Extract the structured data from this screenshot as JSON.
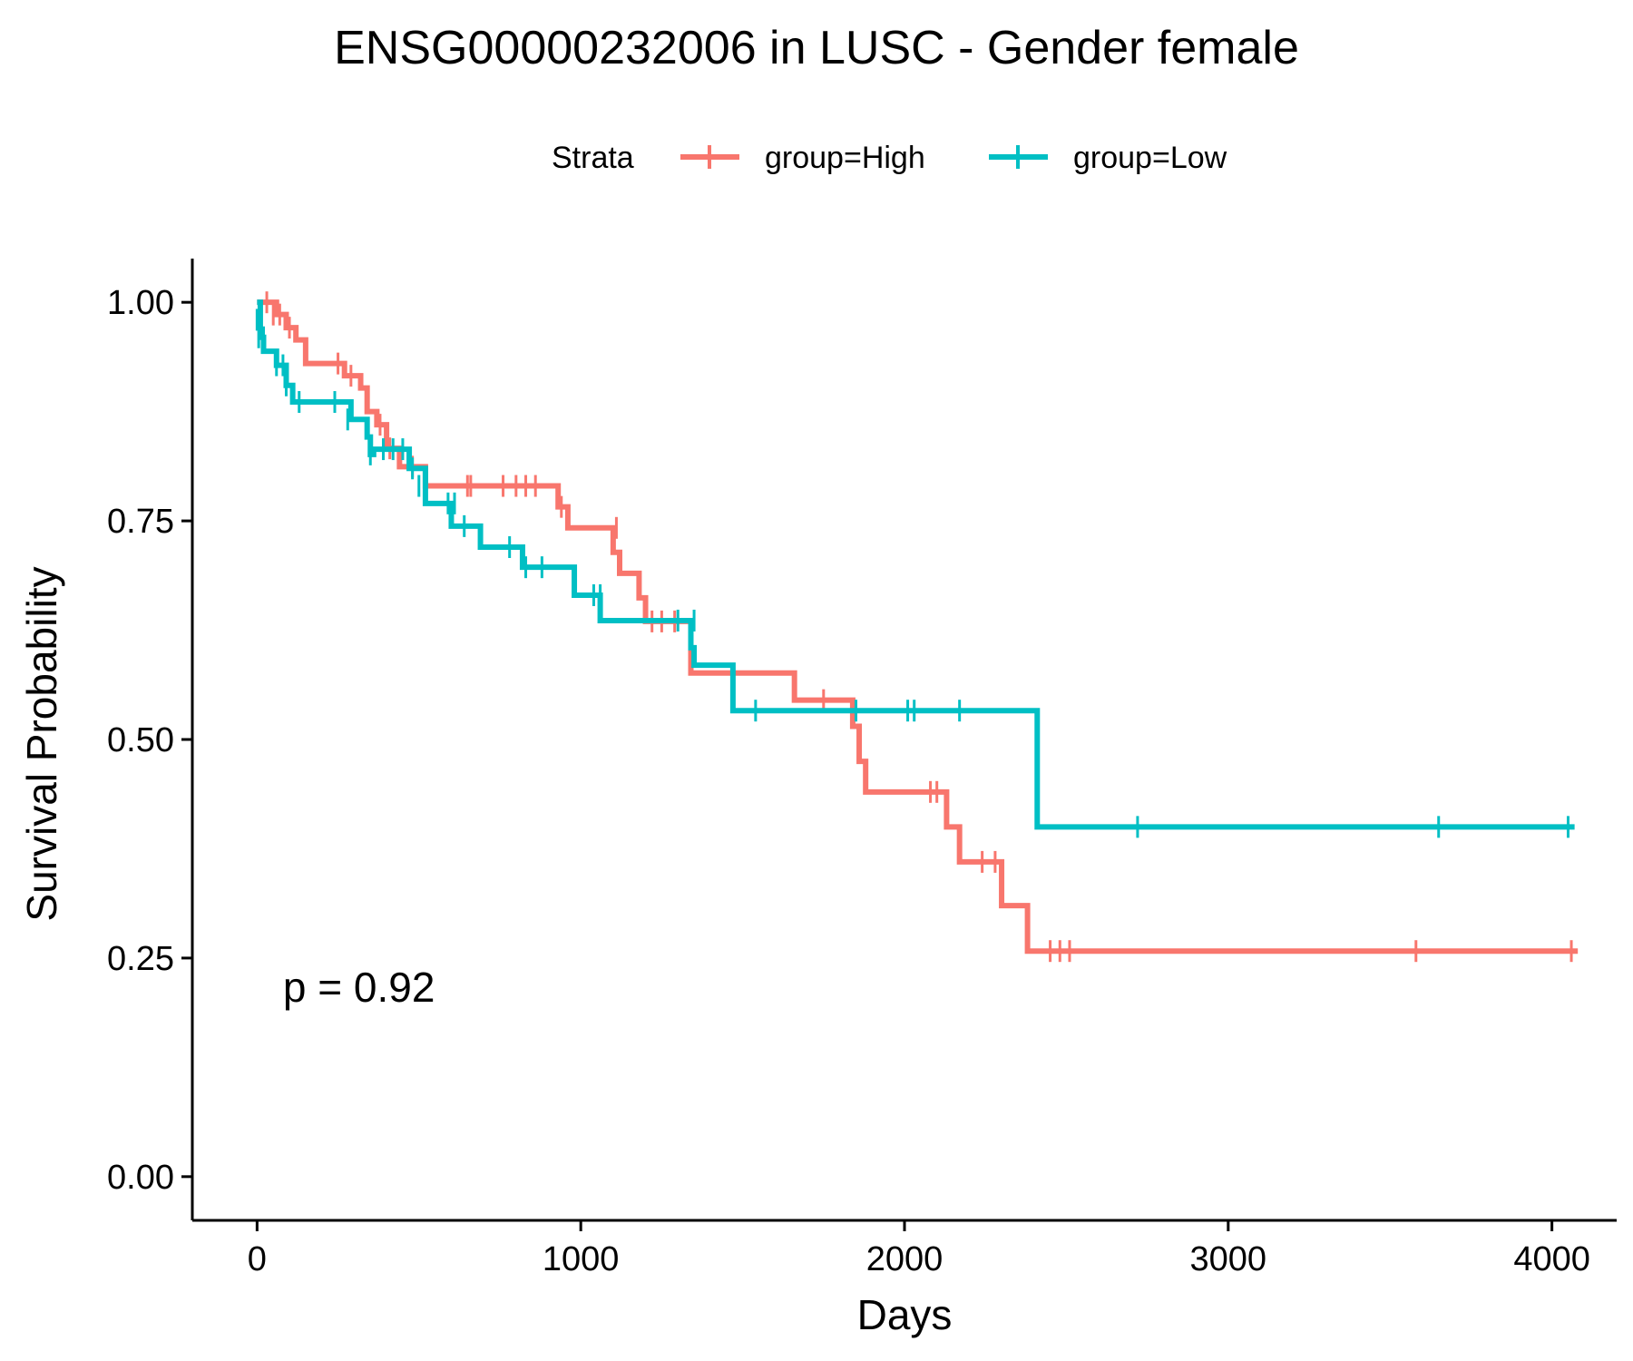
{
  "chart_data": {
    "type": "line",
    "subtype": "kaplan-meier step",
    "title": "ENSG00000232006 in LUSC - Gender female",
    "xlabel": "Days",
    "ylabel": "Survival Probability",
    "xlim": [
      -200,
      4200
    ],
    "ylim": [
      -0.05,
      1.05
    ],
    "xticks": [
      0,
      1000,
      2000,
      3000,
      4000
    ],
    "xtick_labels": [
      "0",
      "1000",
      "2000",
      "3000",
      "4000"
    ],
    "yticks": [
      0,
      0.25,
      0.5,
      0.75,
      1.0
    ],
    "ytick_labels": [
      "0.00",
      "0.25",
      "0.50",
      "0.75",
      "1.00"
    ],
    "grid": false,
    "legend": {
      "title": "Strata",
      "position": "top"
    },
    "annotation": {
      "text": "p = 0.92",
      "x": 80,
      "y": 0.2
    },
    "series": [
      {
        "name": "group=High",
        "color": "#F8766D",
        "steps": [
          [
            0,
            1.0
          ],
          [
            60,
            0.986
          ],
          [
            90,
            0.971
          ],
          [
            120,
            0.957
          ],
          [
            150,
            0.93
          ],
          [
            270,
            0.916
          ],
          [
            320,
            0.902
          ],
          [
            340,
            0.875
          ],
          [
            370,
            0.86
          ],
          [
            400,
            0.833
          ],
          [
            440,
            0.812
          ],
          [
            520,
            0.79
          ],
          [
            930,
            0.766
          ],
          [
            960,
            0.742
          ],
          [
            1100,
            0.714
          ],
          [
            1120,
            0.69
          ],
          [
            1180,
            0.662
          ],
          [
            1200,
            0.635
          ],
          [
            1340,
            0.576
          ],
          [
            1660,
            0.545
          ],
          [
            1840,
            0.515
          ],
          [
            1860,
            0.475
          ],
          [
            1880,
            0.44
          ],
          [
            2130,
            0.4
          ],
          [
            2170,
            0.36
          ],
          [
            2300,
            0.31
          ],
          [
            2380,
            0.258
          ],
          [
            4080,
            0.258
          ]
        ],
        "censored": [
          [
            30,
            1.0
          ],
          [
            50,
            0.986
          ],
          [
            70,
            0.986
          ],
          [
            100,
            0.971
          ],
          [
            250,
            0.93
          ],
          [
            290,
            0.916
          ],
          [
            380,
            0.86
          ],
          [
            410,
            0.833
          ],
          [
            480,
            0.812
          ],
          [
            650,
            0.79
          ],
          [
            660,
            0.79
          ],
          [
            760,
            0.79
          ],
          [
            800,
            0.79
          ],
          [
            830,
            0.79
          ],
          [
            860,
            0.79
          ],
          [
            940,
            0.766
          ],
          [
            1110,
            0.742
          ],
          [
            1220,
            0.635
          ],
          [
            1250,
            0.635
          ],
          [
            1290,
            0.635
          ],
          [
            1750,
            0.545
          ],
          [
            2080,
            0.44
          ],
          [
            2100,
            0.44
          ],
          [
            2240,
            0.36
          ],
          [
            2280,
            0.36
          ],
          [
            2450,
            0.258
          ],
          [
            2480,
            0.258
          ],
          [
            2510,
            0.258
          ],
          [
            3580,
            0.258
          ],
          [
            4060,
            0.258
          ]
        ]
      },
      {
        "name": "group=Low",
        "color": "#00BFC4",
        "steps": [
          [
            0,
            1.0
          ],
          [
            10,
            0.96
          ],
          [
            20,
            0.944
          ],
          [
            60,
            0.928
          ],
          [
            90,
            0.905
          ],
          [
            110,
            0.886
          ],
          [
            290,
            0.866
          ],
          [
            340,
            0.846
          ],
          [
            350,
            0.826
          ],
          [
            360,
            0.832
          ],
          [
            470,
            0.81
          ],
          [
            520,
            0.77
          ],
          [
            600,
            0.744
          ],
          [
            690,
            0.72
          ],
          [
            820,
            0.697
          ],
          [
            980,
            0.665
          ],
          [
            1060,
            0.636
          ],
          [
            1340,
            0.605
          ],
          [
            1350,
            0.585
          ],
          [
            1470,
            0.533
          ],
          [
            2410,
            0.4
          ],
          [
            4070,
            0.4
          ]
        ],
        "censored": [
          [
            0,
            0.98
          ],
          [
            5,
            0.96
          ],
          [
            20,
            0.96
          ],
          [
            60,
            0.928
          ],
          [
            80,
            0.928
          ],
          [
            90,
            0.905
          ],
          [
            130,
            0.886
          ],
          [
            240,
            0.886
          ],
          [
            280,
            0.866
          ],
          [
            350,
            0.826
          ],
          [
            390,
            0.832
          ],
          [
            420,
            0.832
          ],
          [
            450,
            0.832
          ],
          [
            480,
            0.81
          ],
          [
            500,
            0.79
          ],
          [
            590,
            0.77
          ],
          [
            610,
            0.77
          ],
          [
            640,
            0.744
          ],
          [
            780,
            0.72
          ],
          [
            830,
            0.697
          ],
          [
            880,
            0.697
          ],
          [
            1040,
            0.665
          ],
          [
            1060,
            0.665
          ],
          [
            1300,
            0.636
          ],
          [
            1350,
            0.636
          ],
          [
            1540,
            0.533
          ],
          [
            1850,
            0.533
          ],
          [
            2010,
            0.533
          ],
          [
            2030,
            0.533
          ],
          [
            2170,
            0.533
          ],
          [
            2720,
            0.4
          ],
          [
            3650,
            0.4
          ],
          [
            4050,
            0.4
          ]
        ]
      }
    ]
  }
}
